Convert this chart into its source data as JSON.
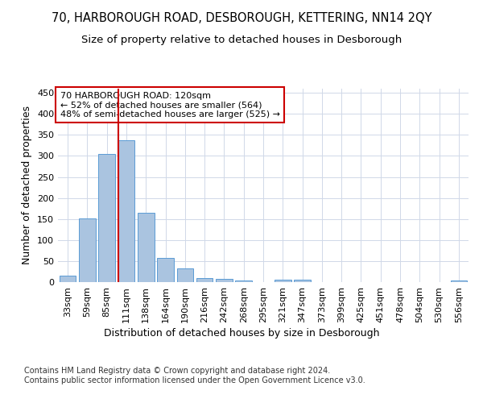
{
  "title": "70, HARBOROUGH ROAD, DESBOROUGH, KETTERING, NN14 2QY",
  "subtitle": "Size of property relative to detached houses in Desborough",
  "xlabel": "Distribution of detached houses by size in Desborough",
  "ylabel": "Number of detached properties",
  "categories": [
    "33sqm",
    "59sqm",
    "85sqm",
    "111sqm",
    "138sqm",
    "164sqm",
    "190sqm",
    "216sqm",
    "242sqm",
    "268sqm",
    "295sqm",
    "321sqm",
    "347sqm",
    "373sqm",
    "399sqm",
    "425sqm",
    "451sqm",
    "478sqm",
    "504sqm",
    "530sqm",
    "556sqm"
  ],
  "values": [
    15,
    152,
    305,
    338,
    165,
    57,
    33,
    9,
    7,
    4,
    0,
    5,
    5,
    0,
    0,
    0,
    0,
    0,
    0,
    0,
    4
  ],
  "bar_color": "#aac4e0",
  "bar_edge_color": "#5b9bd5",
  "highlight_bar_index": 3,
  "highlight_line_color": "#cc0000",
  "annotation_line1": "70 HARBOROUGH ROAD: 120sqm",
  "annotation_line2": "← 52% of detached houses are smaller (564)",
  "annotation_line3": "48% of semi-detached houses are larger (525) →",
  "annotation_box_color": "#ffffff",
  "annotation_box_edge_color": "#cc0000",
  "footer_text": "Contains HM Land Registry data © Crown copyright and database right 2024.\nContains public sector information licensed under the Open Government Licence v3.0.",
  "ylim": [
    0,
    460
  ],
  "background_color": "#ffffff",
  "grid_color": "#d0d8e8",
  "title_fontsize": 10.5,
  "subtitle_fontsize": 9.5,
  "axis_label_fontsize": 9,
  "tick_fontsize": 8,
  "annotation_fontsize": 8,
  "footer_fontsize": 7
}
